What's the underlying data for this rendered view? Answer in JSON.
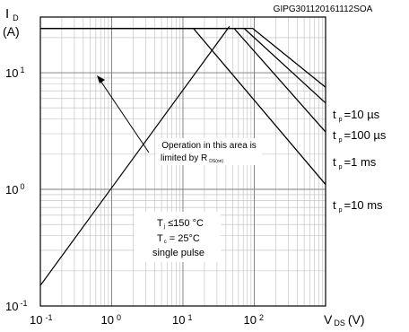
{
  "chart_data": {
    "type": "line",
    "title": "",
    "figure_code": "GIPG301120161112SOA",
    "y_axis": {
      "symbol": "I",
      "subscript": "D",
      "unit": "(A)",
      "scale": "log",
      "range": [
        0.1,
        30
      ],
      "ticks": [
        {
          "mantissa": "10",
          "exp": "-1",
          "value": 0.1
        },
        {
          "mantissa": "10",
          "exp": "0",
          "value": 1
        },
        {
          "mantissa": "10",
          "exp": "1",
          "value": 10
        }
      ]
    },
    "x_axis": {
      "symbol": "V",
      "subscript": "DS",
      "unit": "(V)",
      "scale": "log",
      "range": [
        0.1,
        1000
      ],
      "ticks": [
        {
          "mantissa": "10",
          "exp": "-1",
          "value": 0.1
        },
        {
          "mantissa": "10",
          "exp": "0",
          "value": 1
        },
        {
          "mantissa": "10",
          "exp": "1",
          "value": 10
        },
        {
          "mantissa": "10",
          "exp": "2",
          "value": 100
        }
      ]
    },
    "grid": true,
    "rds_on_limit_line": {
      "x": [
        0.1,
        45
      ],
      "y": [
        0.15,
        25
      ]
    },
    "series": [
      {
        "name": "t_p=10 µs",
        "x": [
          0.1,
          95,
          1000
        ],
        "y": [
          24,
          24,
          7.5
        ]
      },
      {
        "name": "t_p=100 µs",
        "x": [
          0.1,
          72,
          1000
        ],
        "y": [
          24,
          24,
          5.5
        ]
      },
      {
        "name": "t_p=1 ms",
        "x": [
          0.1,
          52,
          1000
        ],
        "y": [
          24,
          24,
          3.1
        ]
      },
      {
        "name": "t_p=10 ms",
        "x": [
          0.1,
          14,
          1000
        ],
        "y": [
          24,
          24,
          1.1
        ]
      }
    ],
    "curve_labels": [
      {
        "t": "t",
        "sub": "p",
        "text": "=10 µs"
      },
      {
        "t": "t",
        "sub": "p",
        "text": "=100 µs"
      },
      {
        "t": "t",
        "sub": "p",
        "text": "=1 ms"
      },
      {
        "t": "t",
        "sub": "p",
        "text": "=10 ms"
      }
    ],
    "annotations": {
      "operation_line1": "Operation in this area is",
      "operation_line2": "limited by R",
      "operation_sub": "DS(on)",
      "cond_tj": "T",
      "cond_tj_sub": "j",
      "cond_tj_val": " ≤150 °C",
      "cond_tc": "T",
      "cond_tc_sub": "c",
      "cond_tc_val": " = 25°C",
      "cond_pulse": "single pulse"
    }
  }
}
